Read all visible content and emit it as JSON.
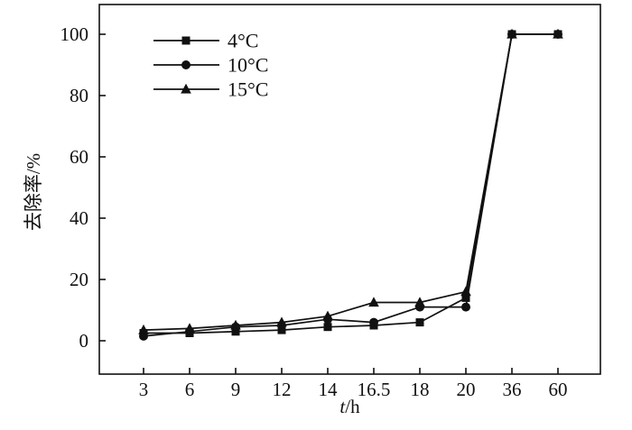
{
  "page": {
    "background": "#ffffff"
  },
  "chart_data": {
    "type": "line",
    "title": "",
    "xlabel": "t/h",
    "ylabel": "去除率/%",
    "categories": [
      "3",
      "6",
      "9",
      "12",
      "14",
      "16.5",
      "18",
      "20",
      "36",
      "60"
    ],
    "y_ticks": [
      0,
      20,
      40,
      60,
      80,
      100
    ],
    "ylim": [
      -11,
      110
    ],
    "grid": false,
    "axis_color": "#111111",
    "legend": {
      "position": "upper-left-inside",
      "entries": [
        "4°C",
        "10°C",
        "15°C"
      ]
    },
    "series": [
      {
        "name": "4°C",
        "marker": "square",
        "values": [
          2.5,
          2.5,
          3,
          3.5,
          4.5,
          5,
          6,
          14,
          100,
          100
        ]
      },
      {
        "name": "10°C",
        "marker": "circle",
        "values": [
          1.5,
          3,
          4.5,
          5,
          7,
          6,
          11,
          11,
          100,
          100
        ]
      },
      {
        "name": "15°C",
        "marker": "triangle",
        "values": [
          3.5,
          4,
          5,
          6,
          8,
          12.5,
          12.5,
          16,
          100,
          100
        ]
      }
    ]
  }
}
